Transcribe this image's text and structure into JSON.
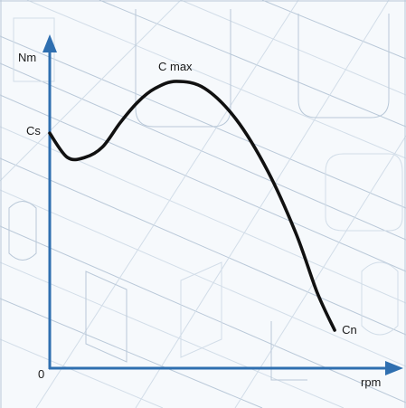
{
  "chart_data": {
    "type": "line",
    "title": "",
    "xlabel": "rpm",
    "ylabel": "Nm",
    "origin_label": "0",
    "xlim": [
      0,
      100
    ],
    "ylim": [
      0,
      100
    ],
    "series": [
      {
        "points": [
          {
            "x": 0,
            "y": 68
          },
          {
            "x": 5,
            "y": 61
          },
          {
            "x": 10,
            "y": 61
          },
          {
            "x": 15,
            "y": 64
          },
          {
            "x": 20,
            "y": 71
          },
          {
            "x": 25,
            "y": 77
          },
          {
            "x": 30,
            "y": 81
          },
          {
            "x": 36,
            "y": 83
          },
          {
            "x": 44,
            "y": 81
          },
          {
            "x": 53,
            "y": 72
          },
          {
            "x": 62,
            "y": 57
          },
          {
            "x": 70,
            "y": 39
          },
          {
            "x": 76,
            "y": 22
          },
          {
            "x": 81,
            "y": 11
          }
        ]
      }
    ],
    "point_labels": [
      {
        "text": "Cs",
        "x": 0,
        "y": 68
      },
      {
        "text": "C max",
        "x": 36,
        "y": 83
      },
      {
        "text": "Cn",
        "x": 81,
        "y": 11
      }
    ],
    "grid": false,
    "colors": {
      "axis": "#2f6fb0",
      "curve": "#111111",
      "background": "#f6f9fc"
    }
  }
}
